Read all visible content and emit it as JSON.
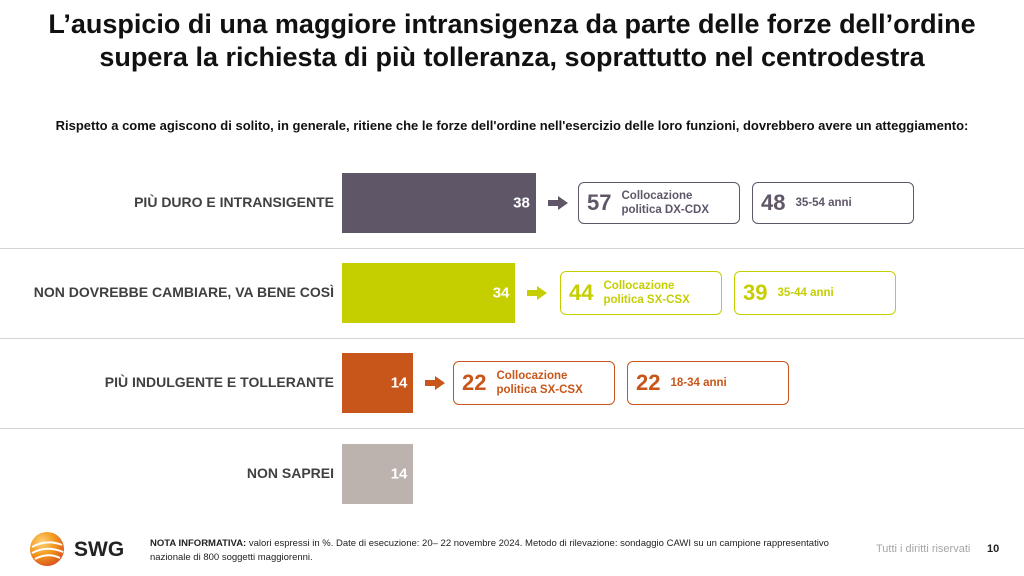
{
  "title_line1": "L’auspicio di una maggiore intransigenza da parte delle forze dell’ordine",
  "title_line2": "supera la richiesta di più tolleranza, soprattutto nel centrodestra",
  "question": "Rispetto a come agiscono di solito, in generale, ritiene che le forze dell'ordine nell'esercizio delle loro funzioni, dovrebbero avere un atteggiamento:",
  "chart_data": {
    "type": "bar",
    "orientation": "horizontal",
    "unit": "%",
    "categories": [
      "PIÙ DURO E INTRANSIGENTE",
      "NON DOVREBBE CAMBIARE, VA BENE COSÌ",
      "PIÙ INDULGENTE E TOLLERANTE",
      "NON SAPREI"
    ],
    "values": [
      38,
      34,
      14,
      14
    ],
    "value_labels": [
      "38",
      "34",
      "14",
      "14"
    ],
    "colors": [
      "#5f5668",
      "#c5cf00",
      "#c8561a",
      "#bcb3ae"
    ],
    "breakdowns": [
      {
        "pol_value": "57",
        "pol_label1": "Collocazione",
        "pol_label2": "politica DX-CDX",
        "age_value": "48",
        "age_label": "35-54 anni"
      },
      {
        "pol_value": "44",
        "pol_label1": "Collocazione",
        "pol_label2": "politica SX-CSX",
        "age_value": "39",
        "age_label": "35-44 anni"
      },
      {
        "pol_value": "22",
        "pol_label1": "Collocazione",
        "pol_label2": "politica SX-CSX",
        "age_value": "22",
        "age_label": "18-34 anni"
      }
    ]
  },
  "footer": {
    "brand": "SWG",
    "note_label": "NOTA INFORMATIVA:",
    "note_text": " valori espressi in %. Date di esecuzione: 20– 22 novembre 2024. Metodo di rilevazione: sondaggio CAWI su un campione rappresentativo nazionale di 800 soggetti maggiorenni.",
    "rights": "Tutti i diritti riservati",
    "page_number": "10"
  }
}
